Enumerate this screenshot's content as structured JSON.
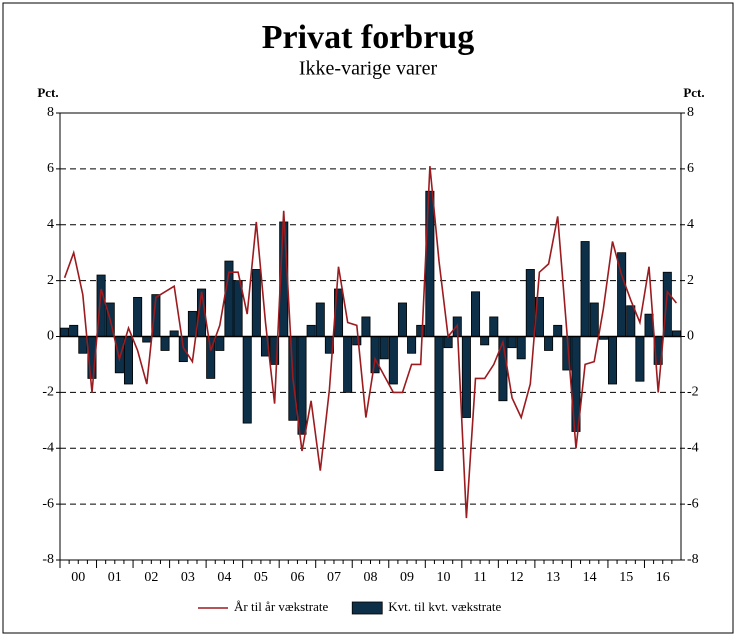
{
  "chart_data": {
    "type": "bar_line",
    "title": "Privat forbrug",
    "subtitle": "Ikke-varige varer",
    "y_label": "Pct.",
    "y2_label": "Pct.",
    "categories": [
      null,
      "00",
      null,
      null,
      null,
      "01",
      null,
      null,
      null,
      "02",
      null,
      null,
      null,
      "03",
      null,
      null,
      null,
      "04",
      null,
      null,
      null,
      "05",
      null,
      null,
      null,
      "06",
      null,
      null,
      null,
      "07",
      null,
      null,
      null,
      "08",
      null,
      null,
      null,
      "09",
      null,
      null,
      null,
      "10",
      null,
      null,
      null,
      "11",
      null,
      null,
      null,
      "12",
      null,
      null,
      null,
      "13",
      null,
      null,
      null,
      "14",
      null,
      null,
      null,
      "15",
      null,
      null,
      null,
      "16",
      null,
      null
    ],
    "series": [
      {
        "name": "År til år vækstrate",
        "kind": "line",
        "color": "#9b1b1f",
        "values": [
          2.1,
          3.0,
          1.5,
          -2.0,
          1.7,
          0.6,
          -0.8,
          0.3,
          -0.5,
          -1.7,
          1.4,
          1.6,
          1.8,
          -0.4,
          -0.9,
          1.6,
          -0.5,
          0.4,
          2.3,
          2.3,
          0.8,
          4.1,
          0.5,
          -2.4,
          4.5,
          -1.5,
          -4.1,
          -2.3,
          -4.8,
          -1.9,
          2.5,
          0.5,
          0.4,
          -2.9,
          -0.8,
          -1.4,
          -2.0,
          -2.0,
          -1.0,
          -1.0,
          6.1,
          2.7,
          0.0,
          0.4,
          -6.5,
          -1.5,
          -1.5,
          -1.0,
          -0.2,
          -2.2,
          -2.9,
          -1.7,
          2.3,
          2.6,
          4.3,
          0.2,
          -4.0,
          -1.0,
          -0.9,
          1.0,
          3.4,
          2.2,
          1.3,
          0.5,
          2.5,
          -2.0,
          1.6,
          1.2
        ]
      },
      {
        "name": "Kvt. til kvt. vækstrate",
        "kind": "bar",
        "color": "#0d3048",
        "values": [
          0.3,
          0.4,
          -0.6,
          -1.5,
          2.2,
          1.2,
          -1.3,
          -1.7,
          1.4,
          -0.2,
          1.5,
          -0.5,
          0.2,
          -0.9,
          0.9,
          1.7,
          -1.5,
          -0.5,
          2.7,
          2.0,
          -3.1,
          2.4,
          -0.7,
          -1.0,
          4.1,
          -3.0,
          -3.5,
          0.4,
          1.2,
          -0.6,
          1.7,
          -2.0,
          -0.3,
          0.7,
          -1.3,
          -0.8,
          -1.7,
          1.2,
          -0.6,
          0.4,
          5.2,
          -4.8,
          -0.4,
          0.7,
          -2.9,
          1.6,
          -0.3,
          0.7,
          -2.3,
          -0.4,
          -0.8,
          2.4,
          1.4,
          -0.5,
          0.4,
          -1.2,
          -3.4,
          3.4,
          1.2,
          -0.1,
          -1.7,
          3.0,
          1.1,
          -1.6,
          0.8,
          -1.0,
          2.3,
          0.2
        ]
      }
    ],
    "ylim": [
      -8,
      8
    ],
    "yticks": [
      -8,
      -6,
      -4,
      -2,
      0,
      2,
      4,
      6,
      8
    ],
    "y2lim": [
      -8,
      8
    ],
    "y2ticks": [
      -8,
      -6,
      -4,
      -2,
      0,
      2,
      4,
      6,
      8
    ],
    "grid": true,
    "legend": "bottom"
  }
}
